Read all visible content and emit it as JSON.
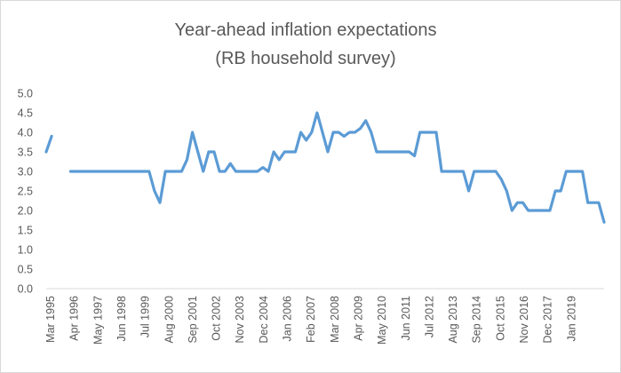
{
  "chart_data": {
    "type": "line",
    "title": [
      "Year-ahead inflation expectations",
      "(RB household survey)"
    ],
    "xlabel": "",
    "ylabel": "",
    "ylim": [
      0,
      5
    ],
    "yticks": [
      "0.0",
      "0.5",
      "1.0",
      "1.5",
      "2.0",
      "2.5",
      "3.0",
      "3.5",
      "4.0",
      "4.5",
      "5.0"
    ],
    "xtick_labels": [
      "Mar 1995",
      "Apr 1996",
      "May 1997",
      "Jun 1998",
      "Jul 1999",
      "Aug 2000",
      "Sep 2001",
      "Oct 2002",
      "Nov 2003",
      "Dec 2004",
      "Jan 2006",
      "Feb 2007",
      "Mar 2008",
      "Apr 2009",
      "May 2010",
      "Jun 2011",
      "Jul 2012",
      "Aug 2013",
      "Sep 2014",
      "Oct 2015",
      "Nov 2016",
      "Dec 2017",
      "Jan 2019"
    ],
    "grid": false,
    "legend": "none",
    "line_color": "#5b9bd5",
    "series": [
      {
        "name": "Inflation expectations",
        "segments": [
          [
            {
              "q": 0,
              "v": 3.5
            },
            {
              "q": 1,
              "v": 3.9
            }
          ],
          [
            {
              "q": 4.5,
              "v": 3.0
            },
            {
              "q": 8,
              "v": 3.0
            },
            {
              "q": 12,
              "v": 3.0
            },
            {
              "q": 16,
              "v": 3.0
            },
            {
              "q": 18,
              "v": 3.0
            },
            {
              "q": 19,
              "v": 3.0
            },
            {
              "q": 20,
              "v": 2.5
            },
            {
              "q": 21,
              "v": 2.2
            },
            {
              "q": 22,
              "v": 3.0
            },
            {
              "q": 24,
              "v": 3.0
            },
            {
              "q": 25,
              "v": 3.0
            },
            {
              "q": 26,
              "v": 3.3
            },
            {
              "q": 27,
              "v": 4.0
            },
            {
              "q": 28,
              "v": 3.5
            },
            {
              "q": 29,
              "v": 3.0
            },
            {
              "q": 30,
              "v": 3.5
            },
            {
              "q": 31,
              "v": 3.5
            },
            {
              "q": 32,
              "v": 3.0
            },
            {
              "q": 33,
              "v": 3.0
            },
            {
              "q": 34,
              "v": 3.2
            },
            {
              "q": 35,
              "v": 3.0
            },
            {
              "q": 36,
              "v": 3.0
            },
            {
              "q": 38,
              "v": 3.0
            },
            {
              "q": 39,
              "v": 3.0
            },
            {
              "q": 40,
              "v": 3.1
            },
            {
              "q": 41,
              "v": 3.0
            },
            {
              "q": 42,
              "v": 3.5
            },
            {
              "q": 43,
              "v": 3.3
            },
            {
              "q": 44,
              "v": 3.5
            },
            {
              "q": 45,
              "v": 3.5
            },
            {
              "q": 46,
              "v": 3.5
            },
            {
              "q": 47,
              "v": 4.0
            },
            {
              "q": 48,
              "v": 3.8
            },
            {
              "q": 49,
              "v": 4.0
            },
            {
              "q": 50,
              "v": 4.5
            },
            {
              "q": 51,
              "v": 4.0
            },
            {
              "q": 52,
              "v": 3.5
            },
            {
              "q": 53,
              "v": 4.0
            },
            {
              "q": 54,
              "v": 4.0
            },
            {
              "q": 55,
              "v": 3.9
            },
            {
              "q": 56,
              "v": 4.0
            },
            {
              "q": 57,
              "v": 4.0
            },
            {
              "q": 58,
              "v": 4.1
            },
            {
              "q": 59,
              "v": 4.3
            },
            {
              "q": 60,
              "v": 4.0
            },
            {
              "q": 61,
              "v": 3.5
            },
            {
              "q": 62,
              "v": 3.5
            },
            {
              "q": 64,
              "v": 3.5
            },
            {
              "q": 66,
              "v": 3.5
            },
            {
              "q": 67,
              "v": 3.5
            },
            {
              "q": 68,
              "v": 3.4
            },
            {
              "q": 69,
              "v": 4.0
            },
            {
              "q": 70,
              "v": 4.0
            },
            {
              "q": 72,
              "v": 4.0
            },
            {
              "q": 73,
              "v": 3.0
            },
            {
              "q": 74,
              "v": 3.0
            },
            {
              "q": 76,
              "v": 3.0
            },
            {
              "q": 77,
              "v": 3.0
            },
            {
              "q": 78,
              "v": 2.5
            },
            {
              "q": 79,
              "v": 3.0
            },
            {
              "q": 80,
              "v": 3.0
            },
            {
              "q": 82,
              "v": 3.0
            },
            {
              "q": 83,
              "v": 3.0
            },
            {
              "q": 84,
              "v": 2.8
            },
            {
              "q": 85,
              "v": 2.5
            },
            {
              "q": 86,
              "v": 2.0
            },
            {
              "q": 87,
              "v": 2.2
            },
            {
              "q": 88,
              "v": 2.2
            },
            {
              "q": 89,
              "v": 2.0
            },
            {
              "q": 90,
              "v": 2.0
            },
            {
              "q": 92,
              "v": 2.0
            },
            {
              "q": 93,
              "v": 2.0
            },
            {
              "q": 94,
              "v": 2.5
            },
            {
              "q": 95,
              "v": 2.5
            },
            {
              "q": 96,
              "v": 3.0
            },
            {
              "q": 98,
              "v": 3.0
            },
            {
              "q": 99,
              "v": 3.0
            },
            {
              "q": 100,
              "v": 2.2
            },
            {
              "q": 101,
              "v": 2.2
            },
            {
              "q": 102,
              "v": 2.2
            },
            {
              "q": 103,
              "v": 1.7
            }
          ]
        ]
      }
    ]
  }
}
